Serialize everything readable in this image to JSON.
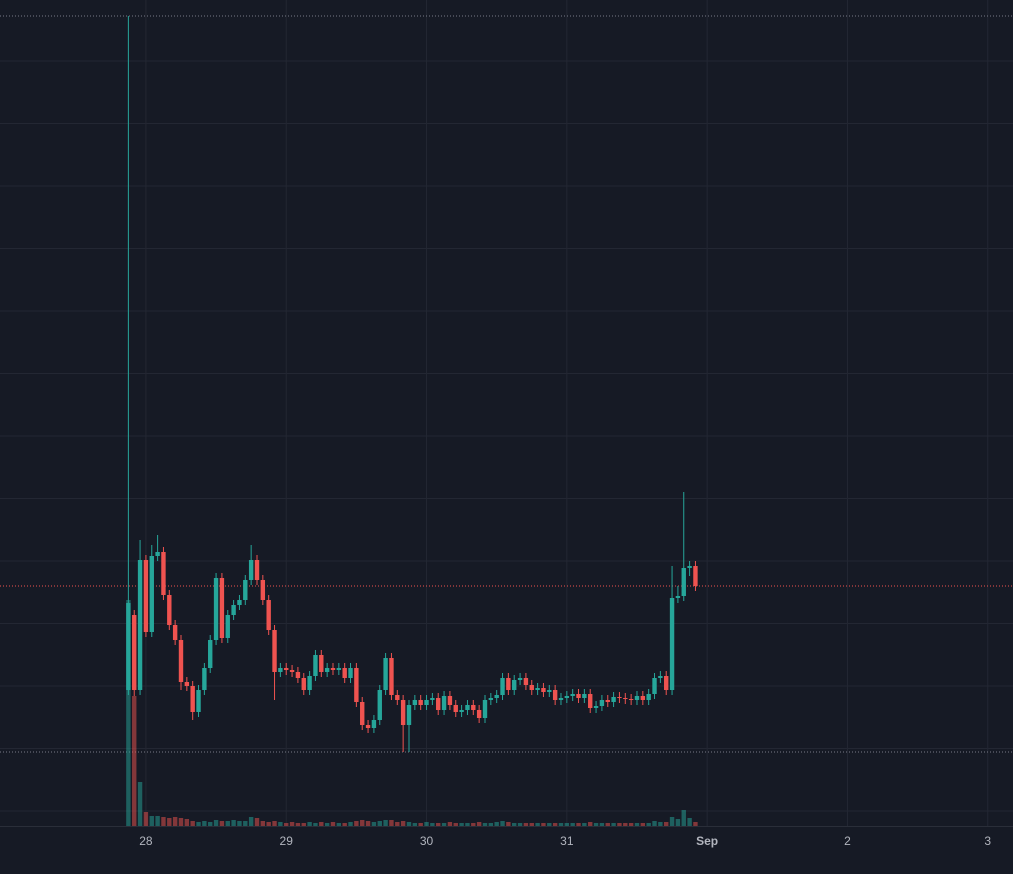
{
  "chart_data": {
    "type": "candlestick",
    "x": [
      27.875,
      27.9167,
      27.9583,
      28,
      28.0417,
      28.0833,
      28.125,
      28.1667,
      28.2083,
      28.25,
      28.2917,
      28.3333,
      28.375,
      28.4167,
      28.4583,
      28.5,
      28.5417,
      28.5833,
      28.625,
      28.6667,
      28.7083,
      28.75,
      28.7917,
      28.8333,
      28.875,
      28.9167,
      28.9583,
      29,
      29.0417,
      29.0833,
      29.125,
      29.1667,
      29.2083,
      29.25,
      29.2917,
      29.3333,
      29.375,
      29.4167,
      29.4583,
      29.5,
      29.5417,
      29.5833,
      29.625,
      29.6667,
      29.7083,
      29.75,
      29.7917,
      29.8333,
      29.875,
      29.9167,
      29.9583,
      30,
      30.0417,
      30.0833,
      30.125,
      30.1667,
      30.2083,
      30.25,
      30.2917,
      30.3333,
      30.375,
      30.4167,
      30.4583,
      30.5,
      30.5417,
      30.5833,
      30.625,
      30.6667,
      30.7083,
      30.75,
      30.7917,
      30.8333,
      30.875,
      30.9167,
      30.9583,
      31,
      31.0417,
      31.0833,
      31.125,
      31.1667,
      31.2083,
      31.25,
      31.2917,
      31.3333,
      31.375,
      31.4167,
      31.4583,
      31.5,
      31.5417,
      31.5833,
      31.625,
      31.6667,
      31.7083,
      31.75,
      31.7917,
      31.8333,
      31.875,
      31.9167
    ],
    "open": [
      136,
      211,
      136,
      266,
      194,
      270,
      274,
      231,
      201,
      186,
      144,
      140,
      114,
      136,
      158,
      186,
      248,
      188,
      211,
      221,
      226,
      246,
      266,
      246,
      226,
      196,
      154,
      158,
      156,
      154,
      148,
      136,
      150,
      171,
      154,
      158,
      156,
      158,
      148,
      158,
      124,
      101,
      98,
      106,
      136,
      168,
      131,
      126,
      101,
      121,
      126,
      121,
      126,
      128,
      116,
      130,
      121,
      114,
      116,
      121,
      116,
      108,
      126,
      128,
      131,
      148,
      136,
      146,
      148,
      141,
      136,
      138,
      134,
      136,
      126,
      128,
      130,
      132,
      128,
      132,
      118,
      120,
      126,
      124,
      129,
      128,
      127,
      126,
      130,
      126,
      132,
      148,
      150,
      136,
      228,
      230,
      258,
      260
    ],
    "high": [
      810,
      216,
      286,
      271,
      281,
      291,
      279,
      236,
      206,
      191,
      149,
      145,
      141,
      163,
      191,
      253,
      253,
      216,
      226,
      231,
      251,
      281,
      271,
      251,
      231,
      201,
      163,
      163,
      161,
      159,
      153,
      155,
      176,
      176,
      163,
      163,
      163,
      163,
      163,
      163,
      129,
      106,
      111,
      141,
      173,
      173,
      136,
      131,
      126,
      131,
      131,
      131,
      133,
      133,
      135,
      135,
      126,
      121,
      126,
      126,
      121,
      131,
      133,
      136,
      153,
      153,
      151,
      153,
      153,
      146,
      143,
      143,
      141,
      141,
      133,
      135,
      137,
      137,
      137,
      137,
      125,
      131,
      131,
      134,
      134,
      133,
      132,
      135,
      135,
      137,
      153,
      155,
      155,
      260,
      240,
      334,
      265,
      265
    ],
    "low": [
      131,
      130,
      131,
      189,
      189,
      265,
      226,
      196,
      181,
      136,
      135,
      106,
      109,
      131,
      153,
      181,
      183,
      183,
      206,
      216,
      221,
      241,
      241,
      221,
      191,
      126,
      149,
      151,
      149,
      143,
      131,
      131,
      145,
      149,
      149,
      151,
      151,
      143,
      143,
      119,
      96,
      93,
      93,
      101,
      131,
      126,
      121,
      74,
      74,
      116,
      116,
      116,
      121,
      111,
      111,
      116,
      109,
      109,
      111,
      111,
      103,
      103,
      121,
      123,
      126,
      131,
      131,
      141,
      136,
      131,
      131,
      129,
      129,
      121,
      121,
      123,
      125,
      123,
      123,
      113,
      113,
      115,
      119,
      119,
      123,
      122,
      121,
      121,
      121,
      121,
      127,
      143,
      131,
      131,
      223,
      225,
      250,
      235
    ],
    "close": [
      223,
      136,
      266,
      194,
      270,
      274,
      231,
      201,
      186,
      144,
      140,
      114,
      136,
      158,
      186,
      248,
      188,
      211,
      221,
      226,
      246,
      266,
      246,
      226,
      196,
      154,
      158,
      156,
      154,
      148,
      136,
      150,
      171,
      154,
      158,
      156,
      158,
      148,
      158,
      124,
      101,
      98,
      106,
      136,
      168,
      131,
      126,
      101,
      121,
      126,
      121,
      126,
      128,
      116,
      130,
      121,
      114,
      116,
      121,
      116,
      108,
      126,
      128,
      131,
      148,
      136,
      146,
      148,
      141,
      136,
      138,
      134,
      136,
      126,
      128,
      130,
      132,
      128,
      132,
      118,
      120,
      126,
      124,
      129,
      128,
      127,
      126,
      130,
      126,
      132,
      148,
      150,
      136,
      228,
      230,
      258,
      260,
      240
    ],
    "volume": [
      226,
      130,
      44,
      14,
      10,
      10,
      9,
      8,
      9,
      8,
      7,
      5,
      4,
      5,
      4,
      6,
      5,
      5,
      6,
      5,
      5,
      9,
      8,
      5,
      4,
      5,
      4,
      3,
      4,
      3,
      3,
      4,
      3,
      4,
      3,
      4,
      3,
      3,
      4,
      5,
      6,
      5,
      4,
      5,
      6,
      6,
      4,
      5,
      4,
      3,
      3,
      4,
      3,
      3,
      3,
      4,
      3,
      3,
      3,
      3,
      4,
      3,
      3,
      4,
      5,
      4,
      3,
      3,
      3,
      3,
      3,
      3,
      3,
      3,
      3,
      3,
      3,
      3,
      3,
      4,
      3,
      3,
      3,
      3,
      3,
      3,
      3,
      3,
      3,
      3,
      5,
      4,
      4,
      9,
      7,
      16,
      8,
      4
    ],
    "up_color": "#26a69a",
    "down_color": "#ef5350",
    "xlim": [
      26.96,
      34.18
    ],
    "xticks": [
      28,
      29,
      30,
      31,
      {
        "value": 32,
        "label": "Sep"
      },
      {
        "value": 33,
        "label": "2"
      },
      {
        "value": 34,
        "label": "3"
      }
    ],
    "ylim": [
      0,
      826
    ],
    "vlim": [
      0,
      250
    ],
    "grid": true
  }
}
